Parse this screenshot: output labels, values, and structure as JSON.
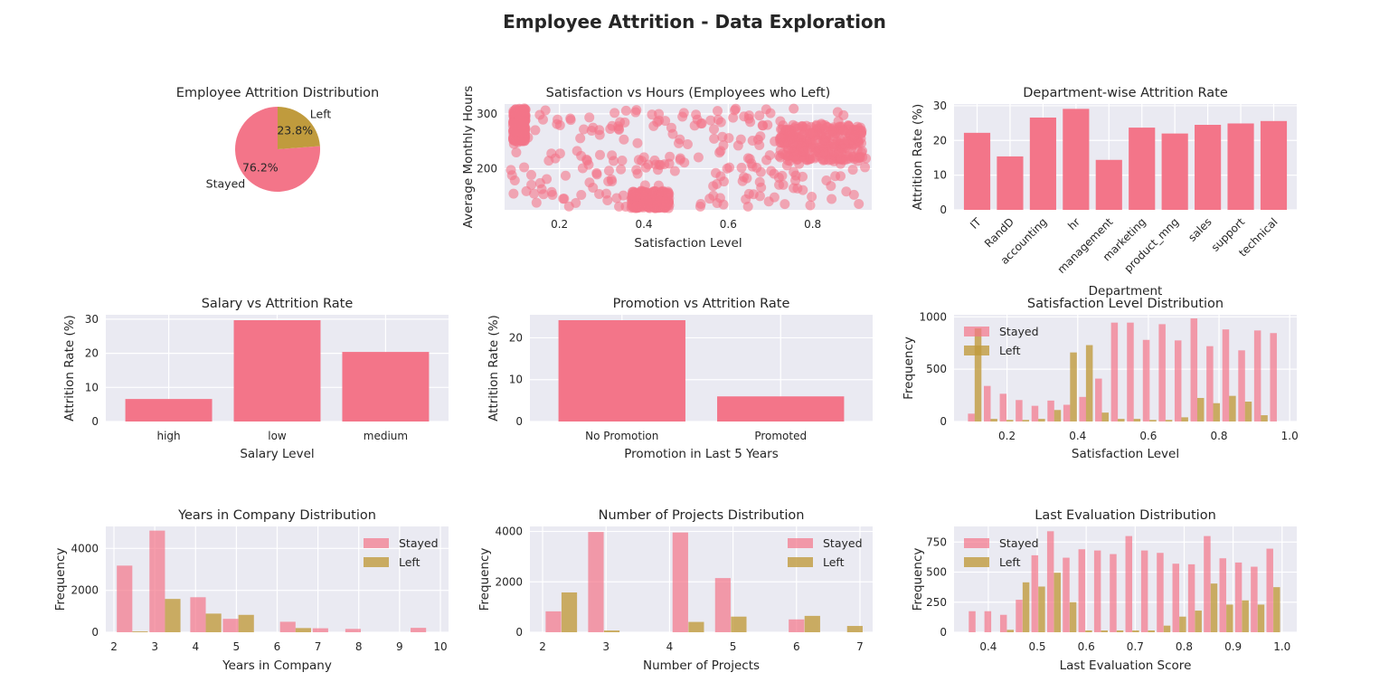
{
  "suptitle": "Employee Attrition - Data Exploration",
  "colors": {
    "stayed": "#f37589",
    "left": "#c09b3d",
    "panel_bg": "#eaeaf2",
    "grid": "#ffffff"
  },
  "chart_data": [
    {
      "id": "attrition_pie",
      "type": "pie",
      "title": "Employee Attrition Distribution",
      "labels": [
        "Stayed",
        "Left"
      ],
      "values": [
        76.2,
        23.8
      ],
      "pct_labels": [
        "76.2%",
        "23.8%"
      ]
    },
    {
      "id": "sat_hours_scatter",
      "type": "scatter",
      "title": "Satisfaction vs Hours (Employees who Left)",
      "xlabel": "Satisfaction Level",
      "ylabel": "Average Monthly Hours",
      "xlim": [
        0.07,
        0.94
      ],
      "ylim": [
        125,
        318
      ],
      "xticks": [
        0.2,
        0.4,
        0.6,
        0.8
      ],
      "xtick_labels": [
        "0.2",
        "0.4",
        "0.6",
        "0.8"
      ],
      "yticks": [
        200,
        300
      ],
      "ytick_labels": [
        "200",
        "300"
      ],
      "clusters": [
        {
          "x": [
            0.09,
            0.12
          ],
          "y": [
            250,
            310
          ]
        },
        {
          "x": [
            0.37,
            0.46
          ],
          "y": [
            128,
            160
          ]
        },
        {
          "x": [
            0.72,
            0.92
          ],
          "y": [
            215,
            280
          ]
        }
      ]
    },
    {
      "id": "dept_attrition",
      "type": "bar",
      "title": "Department-wise Attrition Rate",
      "xlabel": "Department",
      "ylabel": "Attrition Rate (%)",
      "categories": [
        "IT",
        "RandD",
        "accounting",
        "hr",
        "management",
        "marketing",
        "product_mng",
        "sales",
        "support",
        "technical"
      ],
      "values": [
        22.2,
        15.4,
        26.6,
        29.1,
        14.4,
        23.7,
        22.0,
        24.5,
        24.9,
        25.6
      ],
      "ylim": [
        0,
        30.5
      ],
      "yticks": [
        0,
        10,
        20,
        30
      ],
      "ytick_labels": [
        "0",
        "10",
        "20",
        "30"
      ]
    },
    {
      "id": "salary_attrition",
      "type": "bar",
      "title": "Salary vs Attrition Rate",
      "xlabel": "Salary Level",
      "ylabel": "Attrition Rate (%)",
      "categories": [
        "high",
        "low",
        "medium"
      ],
      "values": [
        6.6,
        29.7,
        20.4
      ],
      "ylim": [
        0,
        31.3
      ],
      "yticks": [
        0,
        10,
        20,
        30
      ],
      "ytick_labels": [
        "0",
        "10",
        "20",
        "30"
      ]
    },
    {
      "id": "promotion_attrition",
      "type": "bar",
      "title": "Promotion vs Attrition Rate",
      "xlabel": "Promotion in Last 5 Years",
      "ylabel": "Attrition Rate (%)",
      "categories": [
        "No Promotion",
        "Promoted"
      ],
      "values": [
        24.2,
        6.0
      ],
      "ylim": [
        0,
        25.5
      ],
      "yticks": [
        0,
        10,
        20
      ],
      "ytick_labels": [
        "0",
        "10",
        "20"
      ]
    },
    {
      "id": "satisfaction_hist",
      "type": "bar",
      "title": "Satisfaction Level Distribution",
      "xlabel": "Satisfaction Level",
      "ylabel": "Frequency",
      "xlim": [
        0.05,
        1.02
      ],
      "ylim": [
        0,
        1020
      ],
      "xticks": [
        0.2,
        0.4,
        0.6,
        0.8,
        1.0
      ],
      "xtick_labels": [
        "0.2",
        "0.4",
        "0.6",
        "0.8",
        "1.0"
      ],
      "yticks": [
        0,
        500,
        1000
      ],
      "ytick_labels": [
        "0",
        "500",
        "1000"
      ],
      "bar_width": 0.0192,
      "series": [
        {
          "name": "Stayed",
          "x": [
            0.099,
            0.144,
            0.189,
            0.234,
            0.279,
            0.324,
            0.369,
            0.414,
            0.459,
            0.504,
            0.549,
            0.594,
            0.639,
            0.684,
            0.729,
            0.774,
            0.819,
            0.864,
            0.909,
            0.954
          ],
          "values": [
            75,
            340,
            265,
            205,
            150,
            200,
            160,
            235,
            410,
            945,
            945,
            780,
            930,
            775,
            985,
            720,
            880,
            680,
            870,
            845
          ]
        },
        {
          "name": "Left",
          "x": [
            0.118,
            0.163,
            0.208,
            0.253,
            0.298,
            0.343,
            0.388,
            0.433,
            0.478,
            0.523,
            0.568,
            0.613,
            0.658,
            0.703,
            0.748,
            0.793,
            0.838,
            0.883,
            0.928,
            0.973
          ],
          "values": [
            890,
            25,
            15,
            15,
            25,
            110,
            660,
            730,
            85,
            25,
            25,
            15,
            15,
            40,
            225,
            175,
            245,
            190,
            60,
            0
          ]
        }
      ]
    },
    {
      "id": "years_hist",
      "type": "bar",
      "title": "Years in Company Distribution",
      "xlabel": "Years in Company",
      "ylabel": "Frequency",
      "xlim": [
        1.8,
        10.2
      ],
      "ylim": [
        0,
        5050
      ],
      "xticks": [
        2,
        3,
        4,
        5,
        6,
        7,
        8,
        9,
        10
      ],
      "xtick_labels": [
        "2",
        "3",
        "4",
        "5",
        "6",
        "7",
        "8",
        "9",
        "10"
      ],
      "yticks": [
        0,
        2000,
        4000
      ],
      "ytick_labels": [
        "0",
        "2000",
        "4000"
      ],
      "bar_width": 0.38,
      "series": [
        {
          "name": "Stayed",
          "x": [
            2.26,
            3.06,
            4.06,
            4.86,
            6.26,
            7.06,
            7.86,
            9.46
          ],
          "values": [
            3180,
            4850,
            1670,
            640,
            500,
            190,
            160,
            210
          ]
        },
        {
          "name": "Left",
          "x": [
            2.64,
            3.44,
            4.44,
            5.24,
            6.64,
            7.44,
            8.24,
            9.84
          ],
          "values": [
            40,
            1590,
            890,
            830,
            200,
            0,
            0,
            0
          ]
        }
      ]
    },
    {
      "id": "projects_hist",
      "type": "bar",
      "title": "Number of Projects Distribution",
      "xlabel": "Number of Projects",
      "ylabel": "Frequency",
      "xlim": [
        1.8,
        7.2
      ],
      "ylim": [
        0,
        4200
      ],
      "xticks": [
        2,
        3,
        4,
        5,
        6,
        7
      ],
      "xtick_labels": [
        "2",
        "3",
        "4",
        "5",
        "6",
        "7"
      ],
      "yticks": [
        0,
        2000,
        4000
      ],
      "ytick_labels": [
        "0",
        "2000",
        "4000"
      ],
      "bar_width": 0.245,
      "series": [
        {
          "name": "Stayed",
          "x": [
            2.17,
            2.84,
            4.17,
            4.84,
            6.0
          ],
          "values": [
            830,
            3980,
            3960,
            2150,
            510
          ]
        },
        {
          "name": "Left",
          "x": [
            2.42,
            3.09,
            4.42,
            5.09,
            6.25,
            6.92
          ],
          "values": [
            1580,
            70,
            410,
            620,
            650,
            250
          ]
        }
      ]
    },
    {
      "id": "evaluation_hist",
      "type": "bar",
      "title": "Last Evaluation Distribution",
      "xlabel": "Last Evaluation Score",
      "ylabel": "Frequency",
      "xlim": [
        0.33,
        1.03
      ],
      "ylim": [
        0,
        880
      ],
      "xticks": [
        0.4,
        0.5,
        0.6,
        0.7,
        0.8,
        0.9,
        1.0
      ],
      "xtick_labels": [
        "0.4",
        "0.5",
        "0.6",
        "0.7",
        "0.8",
        "0.9",
        "1.0"
      ],
      "yticks": [
        0,
        250,
        500,
        750
      ],
      "ytick_labels": [
        "0",
        "250",
        "500",
        "750"
      ],
      "bar_width": 0.0138,
      "series": [
        {
          "name": "Stayed",
          "x": [
            0.367,
            0.399,
            0.431,
            0.463,
            0.495,
            0.527,
            0.559,
            0.591,
            0.623,
            0.655,
            0.687,
            0.719,
            0.751,
            0.783,
            0.815,
            0.847,
            0.879,
            0.911,
            0.943,
            0.975
          ],
          "values": [
            175,
            175,
            145,
            270,
            640,
            840,
            620,
            690,
            680,
            650,
            800,
            680,
            660,
            570,
            565,
            800,
            615,
            580,
            545,
            695
          ]
        },
        {
          "name": "Left",
          "x": [
            0.381,
            0.413,
            0.445,
            0.477,
            0.509,
            0.541,
            0.573,
            0.605,
            0.637,
            0.669,
            0.701,
            0.733,
            0.765,
            0.797,
            0.829,
            0.861,
            0.893,
            0.925,
            0.957,
            0.989
          ],
          "values": [
            0,
            0,
            20,
            415,
            380,
            495,
            250,
            15,
            15,
            15,
            15,
            15,
            55,
            130,
            180,
            405,
            230,
            265,
            230,
            375
          ]
        }
      ]
    }
  ],
  "legend": {
    "labels": [
      "Stayed",
      "Left"
    ]
  }
}
